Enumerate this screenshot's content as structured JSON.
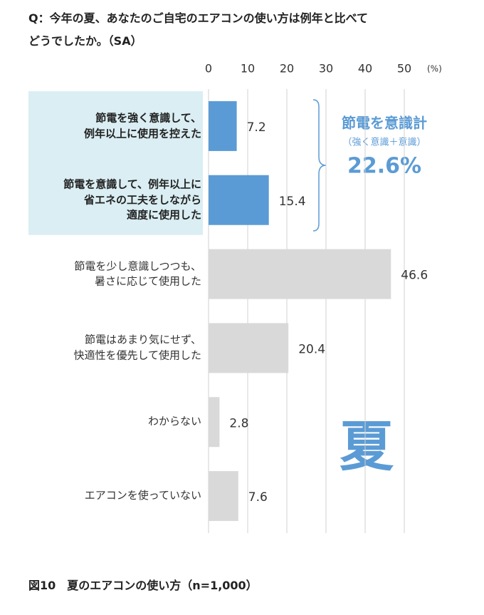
{
  "chart_data": {
    "type": "bar",
    "orientation": "horizontal",
    "title": "Q：今年の夏、あなたのご自宅のエアコンの使い方は例年と比べて\nどうでしたか。（SA）",
    "categories": [
      "節電を強く意識して、\n例年以上に使用を控えた",
      "節電を意識して、例年以上に\n省エネの工夫をしながら\n適度に使用した",
      "節電を少し意識しつつも、\n暑さに応じて使用した",
      "節電はあまり気にせず、\n快適性を優先して使用した",
      "わからない",
      "エアコンを使っていない"
    ],
    "values": [
      7.2,
      15.4,
      46.6,
      20.4,
      2.8,
      7.6
    ],
    "highlight": [
      true,
      true,
      false,
      false,
      false,
      false
    ],
    "color": "#d9d9d9",
    "highlight_color": "#5b9bd5",
    "highlight_background": "#daeef3",
    "xlim": [
      0,
      50
    ],
    "xticks": [
      0,
      10,
      20,
      30,
      40,
      50
    ],
    "x_unit": "(%)",
    "grid": true,
    "annotations": {
      "group_label": "節電を意識計",
      "group_note": "（強く意識＋意識）",
      "group_total": "22.6%",
      "season": "夏"
    },
    "caption": "図10　夏のエアコンの使い方（n=1,000）"
  }
}
